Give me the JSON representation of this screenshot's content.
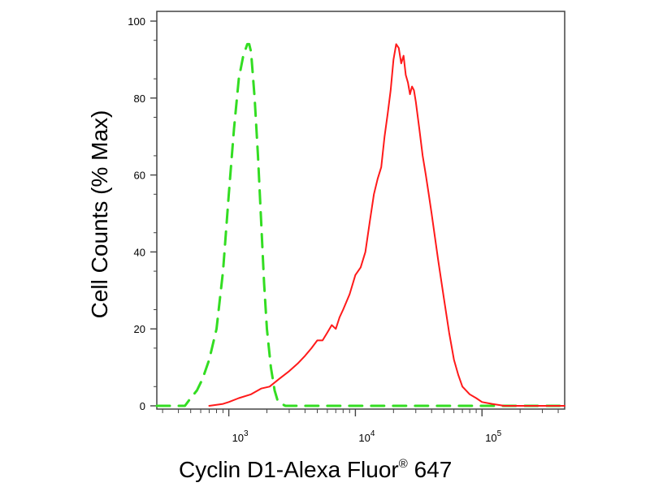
{
  "chart_data": {
    "type": "line",
    "title": "",
    "xlabel": {
      "text": "Cyclin D1-Alexa Fluor",
      "registered": "®",
      "suffix": " 647"
    },
    "ylabel": "Cell Counts (% Max)",
    "x_scale": "log",
    "xlim": [
      270,
      450000
    ],
    "ylim": [
      0,
      100
    ],
    "y_ticks": [
      0,
      20,
      40,
      60,
      80,
      100
    ],
    "y_tick_labels": [
      "0",
      "20",
      "40",
      "60",
      "80",
      "100"
    ],
    "x_major_ticks": [
      {
        "value": 1000,
        "base": "10",
        "exp": "3"
      },
      {
        "value": 10000,
        "base": "10",
        "exp": "4"
      },
      {
        "value": 100000,
        "base": "10",
        "exp": "5"
      }
    ],
    "grid": false,
    "legend": "none",
    "series": [
      {
        "color": "#33dd22",
        "dashed": true,
        "x": [
          270,
          450,
          500,
          560,
          620,
          700,
          800,
          900,
          1000,
          1100,
          1200,
          1300,
          1400,
          1450,
          1500,
          1600,
          1700,
          1800,
          1900,
          2000,
          2150,
          2300,
          2450,
          2800,
          3500,
          5000,
          10000,
          50000,
          450000
        ],
        "y": [
          0,
          0,
          2,
          4,
          7,
          12,
          20,
          35,
          55,
          72,
          85,
          91,
          94,
          94,
          92,
          80,
          65,
          48,
          32,
          20,
          10,
          4,
          1,
          0,
          0,
          0,
          0,
          0,
          0
        ]
      },
      {
        "color": "#ff1a1a",
        "dashed": false,
        "x": [
          700,
          900,
          1000,
          1200,
          1500,
          1800,
          2100,
          2500,
          3000,
          3500,
          4000,
          4500,
          5000,
          5500,
          6000,
          6500,
          7000,
          7500,
          8000,
          9000,
          10000,
          11000,
          12000,
          13000,
          14000,
          15000,
          16000,
          17000,
          18000,
          19000,
          20000,
          21000,
          22000,
          23000,
          24000,
          25000,
          26000,
          27000,
          28000,
          29000,
          30000,
          32000,
          34000,
          36000,
          38000,
          40000,
          45000,
          50000,
          55000,
          60000,
          65000,
          70000,
          80000,
          90000,
          100000,
          120000,
          150000,
          200000,
          450000
        ],
        "y": [
          0,
          0.5,
          1,
          2,
          3,
          4.5,
          5,
          7,
          9,
          11,
          13,
          15,
          17,
          17,
          19,
          21,
          20,
          23,
          25,
          29,
          34,
          36,
          40,
          48,
          55,
          59,
          62,
          70,
          76,
          82,
          90,
          94,
          93,
          89,
          91,
          86,
          84,
          81,
          83,
          82,
          79,
          72,
          65,
          60,
          55,
          50,
          38,
          28,
          19,
          12,
          8,
          5,
          3,
          2,
          1,
          0.5,
          0,
          0,
          0
        ]
      }
    ]
  }
}
